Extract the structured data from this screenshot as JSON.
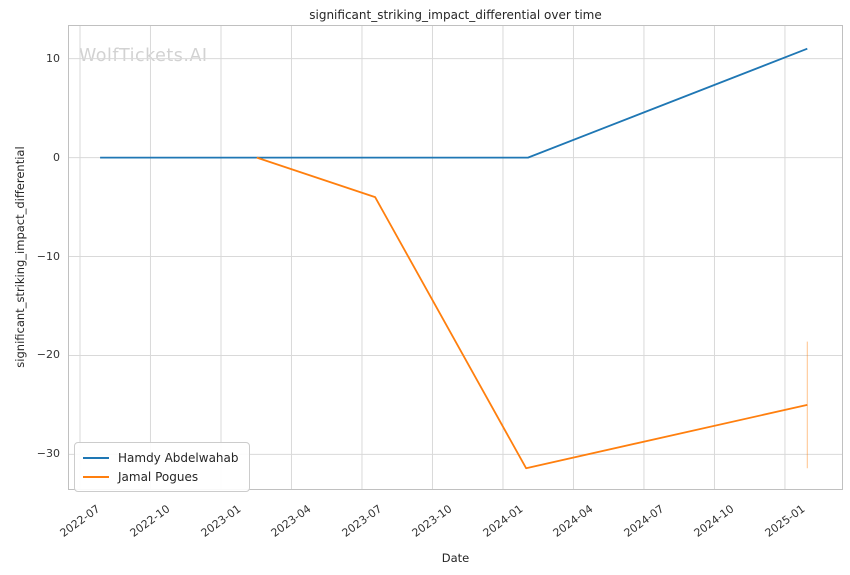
{
  "watermark": "WolfTickets.AI",
  "colors": {
    "background": "#ffffff",
    "grid": "#d9d9d9",
    "spine": "#c0c0c0",
    "tick_text": "#333333",
    "title_text": "#262626",
    "watermark_text": "#d2d2d2",
    "series_blue": "#1f77b4",
    "series_orange": "#ff7f0e"
  },
  "chart_data": {
    "type": "line",
    "title": "significant_striking_impact_differential over time",
    "xlabel": "Date",
    "ylabel": "significant_striking_impact_differential",
    "grid": true,
    "legend_position": "lower left",
    "x_tick_labels": [
      "2022-07",
      "2022-10",
      "2023-01",
      "2023-04",
      "2023-07",
      "2023-10",
      "2024-01",
      "2024-04",
      "2024-07",
      "2024-10",
      "2025-01"
    ],
    "x_tick_months": [
      0,
      3,
      6,
      9,
      12,
      15,
      18,
      21,
      24,
      27,
      30
    ],
    "x_epoch": "2022-07-01",
    "xlim_months": [
      -0.51,
      32.47
    ],
    "y_tick_labels": [
      "10",
      "0",
      "−10",
      "−20",
      "−30"
    ],
    "y_tick_values": [
      10,
      0,
      -10,
      -20,
      -30
    ],
    "ylim": [
      -33.6,
      13.4
    ],
    "series": [
      {
        "name": "Hamdy Abdelwahab",
        "color": "#1f77b4",
        "points": [
          {
            "date": "2022-07-27",
            "value": 0
          },
          {
            "date": "2024-02-03",
            "value": 0
          },
          {
            "date": "2025-01-30",
            "value": 11
          }
        ]
      },
      {
        "name": "Jamal Pogues",
        "color": "#ff7f0e",
        "points": [
          {
            "date": "2023-02-17",
            "value": 0
          },
          {
            "date": "2023-07-18",
            "value": -4
          },
          {
            "date": "2024-01-31",
            "value": -31.4
          },
          {
            "date": "2025-01-30",
            "value": -25
          }
        ],
        "error_bar": {
          "date": "2025-01-30",
          "from": -18.6,
          "to": -31.4
        }
      }
    ]
  }
}
